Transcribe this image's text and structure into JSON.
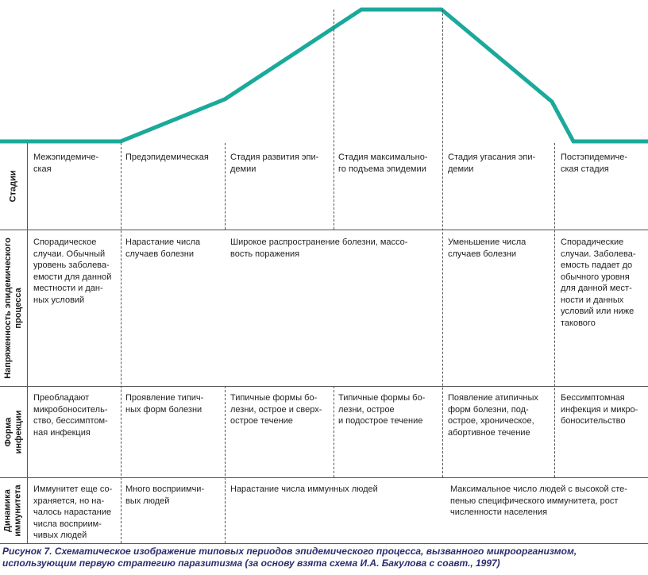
{
  "curve": {
    "color": "#1aa99a"
  },
  "rows": {
    "stages": {
      "label": "Стадии",
      "cells": [
        "Межэпидемиче-\nская",
        "Предэпидемическая",
        "Стадия развития эпи-\nдемии",
        "Стадия максимально-\nго подъема эпидемии",
        "Стадия угасания эпи-\nдемии",
        "Постэпидемиче-\nская стадия"
      ]
    },
    "intensity": {
      "label": "Напряженность эпидемического\nпроцесса",
      "cells": [
        "Спорадическое\nслучаи. Обычный\nуровень заболева-\nемости для данной\nместности и дан-\nных условий",
        "Нарастание числа\nслучаев болезни",
        "Широкое распространение болезни, массо-\nвость поражения",
        "Уменьшение числа\nслучаев болезни",
        "Спорадические\nслучаи. Заболева-\nемость падает до\nобычного уровня\nдля данной мест-\nности и данных\nусловий или ниже\nтакового"
      ]
    },
    "form": {
      "label": "Форма\nинфекции",
      "cells": [
        "Преобладают\nмикробоноситель-\nство, бессимптом-\nная инфекция",
        "Проявление типич-\nных форм болезни",
        "Типичные формы бо-\nлезни, острое и сверх-\nострое течение",
        "Типичные формы бо-\nлезни, острое\nи подострое течение",
        "Появление атипичных\nформ болезни, под-\nострое, хроническое,\nабортивное течение",
        "Бессимптомная\nинфекция и микро-\nбоносительство"
      ]
    },
    "immunity": {
      "label": "Динамика\nиммунитета",
      "cells": [
        "Иммунитет еще со-\nхраняется, но на-\nчалось нарастание\nчисла восприим-\nчивых людей",
        "Много восприимчи-\nвых людей",
        "Нарастание числа иммунных людей",
        "Максимальное число людей с высокой сте-\nпенью специфического иммунитета, рост\nчисленности населения"
      ]
    }
  },
  "caption": "Рисунок 7. Схематическое изображение типовых периодов эпидемического процесса, вызванного микроорганизмом,\nиспользующим первую стратегию паразитизма (за основу взята схема И.А. Бакулова с соавт., 1997)"
}
